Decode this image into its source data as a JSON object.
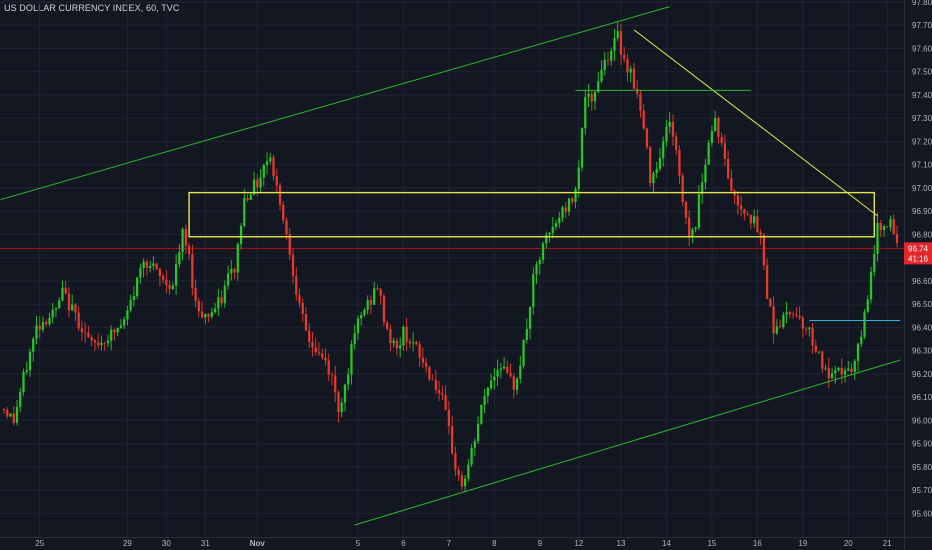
{
  "header": {
    "title": "US DOLLAR CURRENCY INDEX, 60, TVC"
  },
  "colors": {
    "background": "#131722",
    "grid": "#1f2433",
    "up": "#26c726",
    "down": "#e83a2a",
    "channel": "#2db82d",
    "yellow": "#e6e64a",
    "cyan": "#26b5d9",
    "last_price": "#e2262b",
    "axis_text": "#b2b5be"
  },
  "price_tag": {
    "value_label": "96.74",
    "countdown_label": "41:16"
  },
  "chart_data": {
    "type": "candlestick",
    "title": "US DOLLAR CURRENCY INDEX, 60, TVC",
    "ylim": [
      95.55,
      97.8
    ],
    "y_ticks": [
      "97.80",
      "97.70",
      "97.60",
      "97.50",
      "97.40",
      "97.30",
      "97.20",
      "97.10",
      "97.00",
      "96.90",
      "96.80",
      "96.70",
      "96.60",
      "96.50",
      "96.40",
      "96.30",
      "96.20",
      "96.10",
      "96.00",
      "95.90",
      "95.80",
      "95.70",
      "95.60"
    ],
    "x_ticks": [
      "25",
      "29",
      "30",
      "31",
      "Nov",
      "5",
      "6",
      "7",
      "8",
      "9",
      "12",
      "13",
      "14",
      "15",
      "16",
      "19",
      "20",
      "21"
    ],
    "last_price": 96.74,
    "price_path": [
      [
        0,
        96.05
      ],
      [
        3,
        96.0
      ],
      [
        6,
        96.18
      ],
      [
        10,
        96.4
      ],
      [
        13,
        96.44
      ],
      [
        16,
        96.47
      ],
      [
        18,
        96.55
      ],
      [
        20,
        96.5
      ],
      [
        24,
        96.4
      ],
      [
        27,
        96.32
      ],
      [
        30,
        96.34
      ],
      [
        34,
        96.38
      ],
      [
        37,
        96.42
      ],
      [
        40,
        96.55
      ],
      [
        43,
        96.7
      ],
      [
        46,
        96.65
      ],
      [
        49,
        96.6
      ],
      [
        52,
        96.58
      ],
      [
        55,
        96.8
      ],
      [
        57,
        96.7
      ],
      [
        59,
        96.5
      ],
      [
        62,
        96.45
      ],
      [
        65,
        96.48
      ],
      [
        67,
        96.52
      ],
      [
        69,
        96.62
      ],
      [
        71,
        96.65
      ],
      [
        72,
        96.75
      ],
      [
        74,
        96.95
      ],
      [
        76,
        97.0
      ],
      [
        78,
        97.02
      ],
      [
        80,
        97.1
      ],
      [
        82,
        97.15
      ],
      [
        83,
        97.05
      ],
      [
        85,
        96.95
      ],
      [
        87,
        96.8
      ],
      [
        89,
        96.65
      ],
      [
        91,
        96.48
      ],
      [
        93,
        96.38
      ],
      [
        95,
        96.32
      ],
      [
        97,
        96.28
      ],
      [
        99,
        96.25
      ],
      [
        101,
        96.18
      ],
      [
        103,
        96.05
      ],
      [
        105,
        96.15
      ],
      [
        107,
        96.3
      ],
      [
        109,
        96.42
      ],
      [
        111,
        96.48
      ],
      [
        113,
        96.52
      ],
      [
        115,
        96.58
      ],
      [
        117,
        96.44
      ],
      [
        119,
        96.35
      ],
      [
        121,
        96.3
      ],
      [
        123,
        96.38
      ],
      [
        125,
        96.35
      ],
      [
        127,
        96.3
      ],
      [
        129,
        96.25
      ],
      [
        131,
        96.2
      ],
      [
        133,
        96.15
      ],
      [
        135,
        96.08
      ],
      [
        137,
        95.95
      ],
      [
        139,
        95.8
      ],
      [
        141,
        95.72
      ],
      [
        143,
        95.8
      ],
      [
        145,
        95.92
      ],
      [
        147,
        96.05
      ],
      [
        149,
        96.15
      ],
      [
        151,
        96.2
      ],
      [
        153,
        96.25
      ],
      [
        155,
        96.18
      ],
      [
        157,
        96.15
      ],
      [
        159,
        96.25
      ],
      [
        161,
        96.4
      ],
      [
        163,
        96.6
      ],
      [
        165,
        96.7
      ],
      [
        167,
        96.78
      ],
      [
        169,
        96.82
      ],
      [
        171,
        96.88
      ],
      [
        173,
        96.92
      ],
      [
        175,
        96.95
      ],
      [
        177,
        97.1
      ],
      [
        179,
        97.4
      ],
      [
        181,
        97.35
      ],
      [
        183,
        97.48
      ],
      [
        185,
        97.55
      ],
      [
        187,
        97.6
      ],
      [
        189,
        97.65
      ],
      [
        191,
        97.55
      ],
      [
        193,
        97.5
      ],
      [
        195,
        97.4
      ],
      [
        197,
        97.25
      ],
      [
        199,
        97.05
      ],
      [
        201,
        97.1
      ],
      [
        203,
        97.2
      ],
      [
        205,
        97.3
      ],
      [
        207,
        97.15
      ],
      [
        209,
        96.95
      ],
      [
        211,
        96.8
      ],
      [
        213,
        96.85
      ],
      [
        215,
        97.05
      ],
      [
        217,
        97.2
      ],
      [
        219,
        97.3
      ],
      [
        221,
        97.18
      ],
      [
        223,
        97.05
      ],
      [
        225,
        96.95
      ],
      [
        227,
        96.92
      ],
      [
        229,
        96.9
      ],
      [
        231,
        96.85
      ],
      [
        233,
        96.78
      ],
      [
        235,
        96.55
      ],
      [
        237,
        96.4
      ],
      [
        239,
        96.42
      ],
      [
        241,
        96.45
      ],
      [
        243,
        96.48
      ],
      [
        245,
        96.44
      ],
      [
        247,
        96.4
      ],
      [
        249,
        96.35
      ],
      [
        251,
        96.28
      ],
      [
        253,
        96.2
      ],
      [
        255,
        96.18
      ],
      [
        257,
        96.2
      ],
      [
        259,
        96.22
      ],
      [
        261,
        96.2
      ],
      [
        263,
        96.3
      ],
      [
        265,
        96.45
      ],
      [
        267,
        96.65
      ],
      [
        269,
        96.82
      ],
      [
        271,
        96.86
      ],
      [
        273,
        96.84
      ],
      [
        275,
        96.74
      ]
    ]
  }
}
